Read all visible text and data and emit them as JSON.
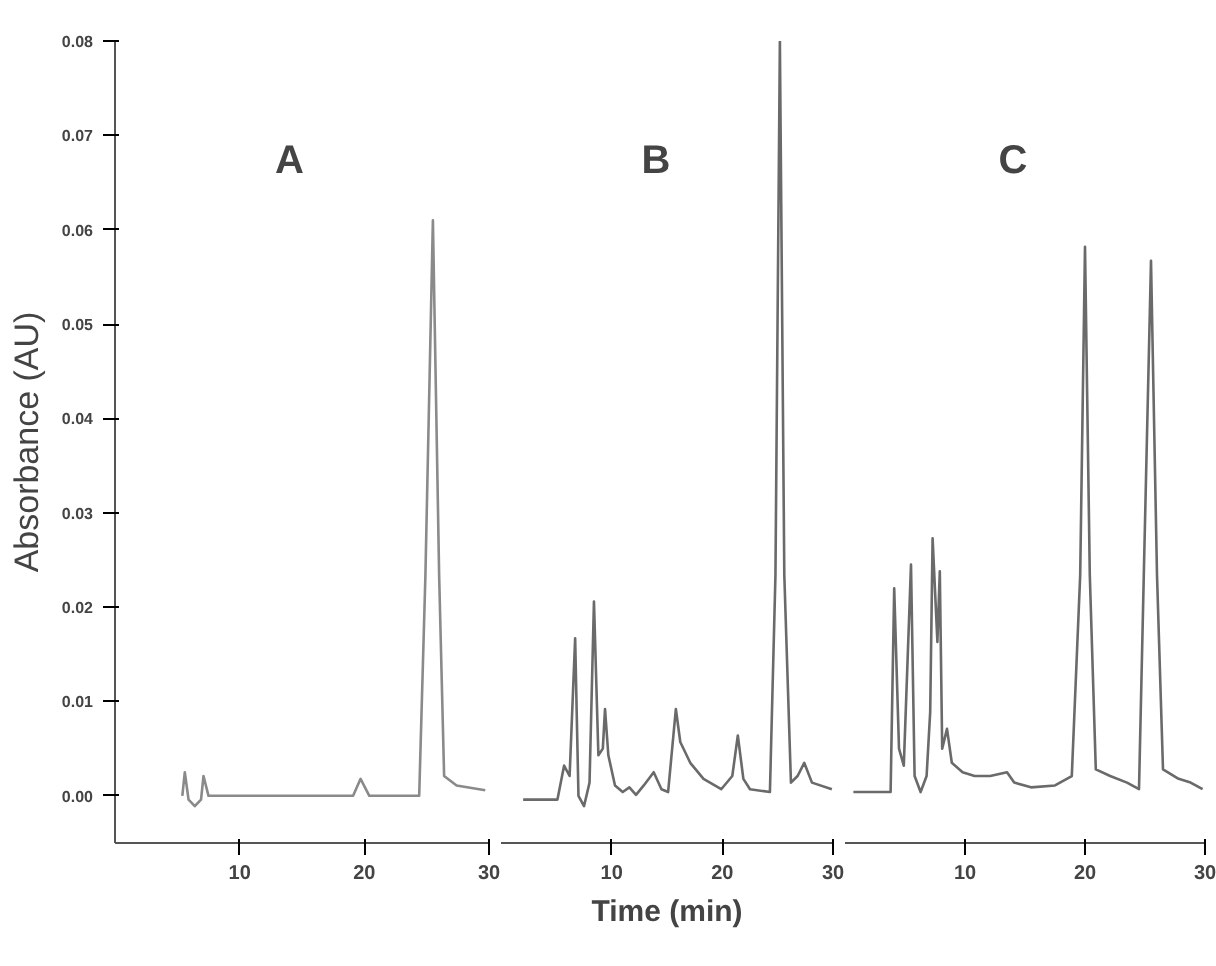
{
  "chart_data": [
    {
      "type": "line",
      "ylabel": "Absorbance (AU)",
      "annotations": [
        "A"
      ],
      "tick_labels": "xy",
      "grid": false,
      "xlim": [
        0,
        30
      ],
      "xticks": [
        10,
        20,
        30
      ],
      "ylim": [
        -0.005,
        0.08
      ],
      "yticks": [
        {
          "value": 0,
          "label": "0.00"
        },
        {
          "value": 0.01,
          "label": "0.01"
        },
        {
          "value": 0.02,
          "label": "0.02"
        },
        {
          "value": 0.03,
          "label": "0.03"
        },
        {
          "value": 0.04,
          "label": "0.04"
        },
        {
          "value": 0.05,
          "label": "0.05"
        },
        {
          "value": 0.06,
          "label": "0.06"
        },
        {
          "value": 0.07,
          "label": "0.07"
        },
        {
          "value": 0.08,
          "label": "0.08"
        }
      ],
      "x": [
        5.4,
        5.6,
        5.9,
        6.4,
        6.9,
        7.1,
        7.5,
        8.4,
        19.1,
        19.7,
        20.4,
        21.7,
        24.4,
        24.9,
        25.5,
        26.0,
        26.4,
        27.4,
        29.7
      ],
      "series": [
        {
          "color": "#8a8a8a",
          "values": [
            0.0,
            0.0025,
            -0.0004,
            -0.0011,
            -0.0004,
            0.0021,
            0.0,
            0.0,
            0.0,
            0.0018,
            0.0,
            0.0,
            0.0,
            0.0234,
            0.061,
            0.0234,
            0.0021,
            0.0011,
            0.0006
          ]
        }
      ]
    },
    {
      "type": "line",
      "xlabel": "Time (min)",
      "annotations": [
        "B"
      ],
      "tick_labels": "x",
      "grid": false,
      "xlim": [
        0,
        30
      ],
      "xticks": [
        10,
        20,
        30
      ],
      "ylim": [
        -0.005,
        0.08
      ],
      "x": [
        2.0,
        5.1,
        5.7,
        6.2,
        6.7,
        7.0,
        7.5,
        8.0,
        8.4,
        8.8,
        9.2,
        9.4,
        9.7,
        10.3,
        11.0,
        11.6,
        12.2,
        12.9,
        13.8,
        14.5,
        15.1,
        15.8,
        16.2,
        17.1,
        18.3,
        19.9,
        20.9,
        21.4,
        21.9,
        22.5,
        24.3,
        24.8,
        25.2,
        25.6,
        26.2,
        26.8,
        27.4,
        28.1,
        29.9
      ],
      "series": [
        {
          "color": "#6a6a6a",
          "values": [
            -0.0004,
            -0.0004,
            0.0032,
            0.0021,
            0.0167,
            0.0,
            -0.0011,
            0.0014,
            0.0206,
            0.0043,
            0.005,
            0.0092,
            0.0043,
            0.0011,
            0.0004,
            0.0009,
            0.0001,
            0.0011,
            0.0025,
            0.0007,
            0.0004,
            0.0092,
            0.0057,
            0.0035,
            0.0018,
            0.0007,
            0.0021,
            0.0064,
            0.0018,
            0.0007,
            0.0004,
            0.0234,
            0.08,
            0.0234,
            0.0014,
            0.0021,
            0.0035,
            0.0014,
            0.0007
          ]
        }
      ]
    },
    {
      "type": "line",
      "annotations": [
        "C"
      ],
      "tick_labels": "x",
      "grid": false,
      "xlim": [
        0,
        30
      ],
      "xticks": [
        10,
        20,
        30
      ],
      "ylim": [
        -0.005,
        0.08
      ],
      "x": [
        0.7,
        3.8,
        4.1,
        4.5,
        4.9,
        5.5,
        5.8,
        6.3,
        6.8,
        7.1,
        7.3,
        7.7,
        7.9,
        8.1,
        8.5,
        8.9,
        9.8,
        10.8,
        12.1,
        13.5,
        14.1,
        15.5,
        17.5,
        18.9,
        19.6,
        20.0,
        20.4,
        20.9,
        22.1,
        23.5,
        24.5,
        24.9,
        25.5,
        26.0,
        26.5,
        27.8,
        28.8,
        29.8
      ],
      "series": [
        {
          "color": "#6a6a6a",
          "values": [
            0.0004,
            0.0004,
            0.022,
            0.005,
            0.0032,
            0.0245,
            0.0021,
            0.0004,
            0.0021,
            0.0089,
            0.0273,
            0.0163,
            0.0238,
            0.005,
            0.0071,
            0.0035,
            0.0025,
            0.0021,
            0.0021,
            0.0025,
            0.0014,
            0.0009,
            0.0011,
            0.0021,
            0.0234,
            0.0582,
            0.0234,
            0.0028,
            0.0021,
            0.0014,
            0.0007,
            0.0234,
            0.0567,
            0.0234,
            0.0028,
            0.0018,
            0.0014,
            0.0007
          ]
        }
      ]
    }
  ]
}
